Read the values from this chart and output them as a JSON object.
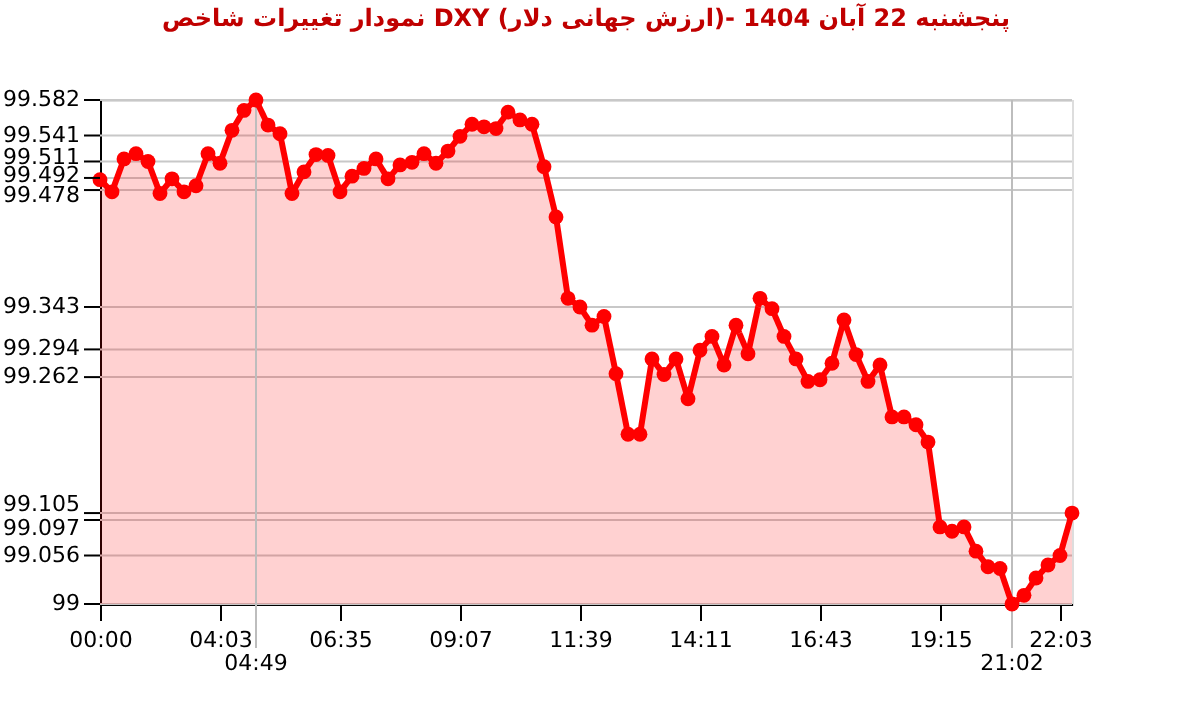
{
  "chart_data": {
    "type": "area",
    "title": "نمودار تغییرات شاخص DXY (ارزش جهانی دلار)- پنجشنبه  22 آبان 1404",
    "categories": [
      "00:00",
      null,
      null,
      null,
      null,
      null,
      null,
      null,
      null,
      null,
      "04:03",
      null,
      null,
      "04:49",
      null,
      null,
      null,
      null,
      null,
      null,
      "06:35",
      null,
      null,
      null,
      null,
      null,
      null,
      null,
      null,
      null,
      "09:07",
      null,
      null,
      null,
      null,
      null,
      null,
      null,
      null,
      null,
      "11:39",
      null,
      null,
      null,
      null,
      null,
      null,
      null,
      null,
      null,
      "14:11",
      null,
      null,
      null,
      null,
      null,
      null,
      null,
      null,
      null,
      "16:43",
      null,
      null,
      null,
      null,
      null,
      null,
      null,
      null,
      null,
      "19:15",
      null,
      null,
      null,
      null,
      null,
      "21:02",
      null,
      null,
      null,
      "22:03",
      null
    ],
    "series": [
      {
        "color": "#ff0000",
        "values": [
          99.49,
          99.476,
          99.514,
          99.52,
          99.511,
          99.474,
          99.491,
          99.476,
          99.483,
          99.52,
          99.509,
          99.547,
          99.57,
          99.582,
          99.553,
          99.543,
          99.474,
          99.499,
          99.519,
          99.518,
          99.476,
          99.494,
          99.503,
          99.514,
          99.491,
          99.507,
          99.51,
          99.52,
          99.509,
          99.523,
          99.54,
          99.554,
          99.551,
          99.549,
          99.568,
          99.559,
          99.554,
          99.505,
          99.447,
          99.353,
          99.343,
          99.322,
          99.332,
          99.266,
          99.196,
          99.196,
          99.283,
          99.265,
          99.283,
          99.237,
          99.293,
          99.309,
          99.276,
          99.322,
          99.289,
          99.353,
          99.341,
          99.309,
          99.283,
          99.257,
          99.259,
          99.278,
          99.328,
          99.288,
          99.257,
          99.276,
          99.216,
          99.216,
          99.207,
          99.187,
          99.089,
          99.084,
          99.089,
          99.061,
          99.043,
          99.041,
          99.0,
          99.01,
          99.03,
          99.045,
          99.056,
          99.105
        ]
      }
    ],
    "ylim": [
      99,
      99.582
    ],
    "yticks": [
      99,
      99.056,
      99.097,
      99.105,
      99.262,
      99.294,
      99.343,
      99.478,
      99.492,
      99.511,
      99.541,
      99.582
    ],
    "grid": "y",
    "marker": "circle",
    "ref_lines": [
      {
        "axis": "x",
        "value": "04:49",
        "color": "#bdbdbd"
      },
      {
        "axis": "x",
        "value": "21:02",
        "color": "#bdbdbd"
      }
    ]
  }
}
